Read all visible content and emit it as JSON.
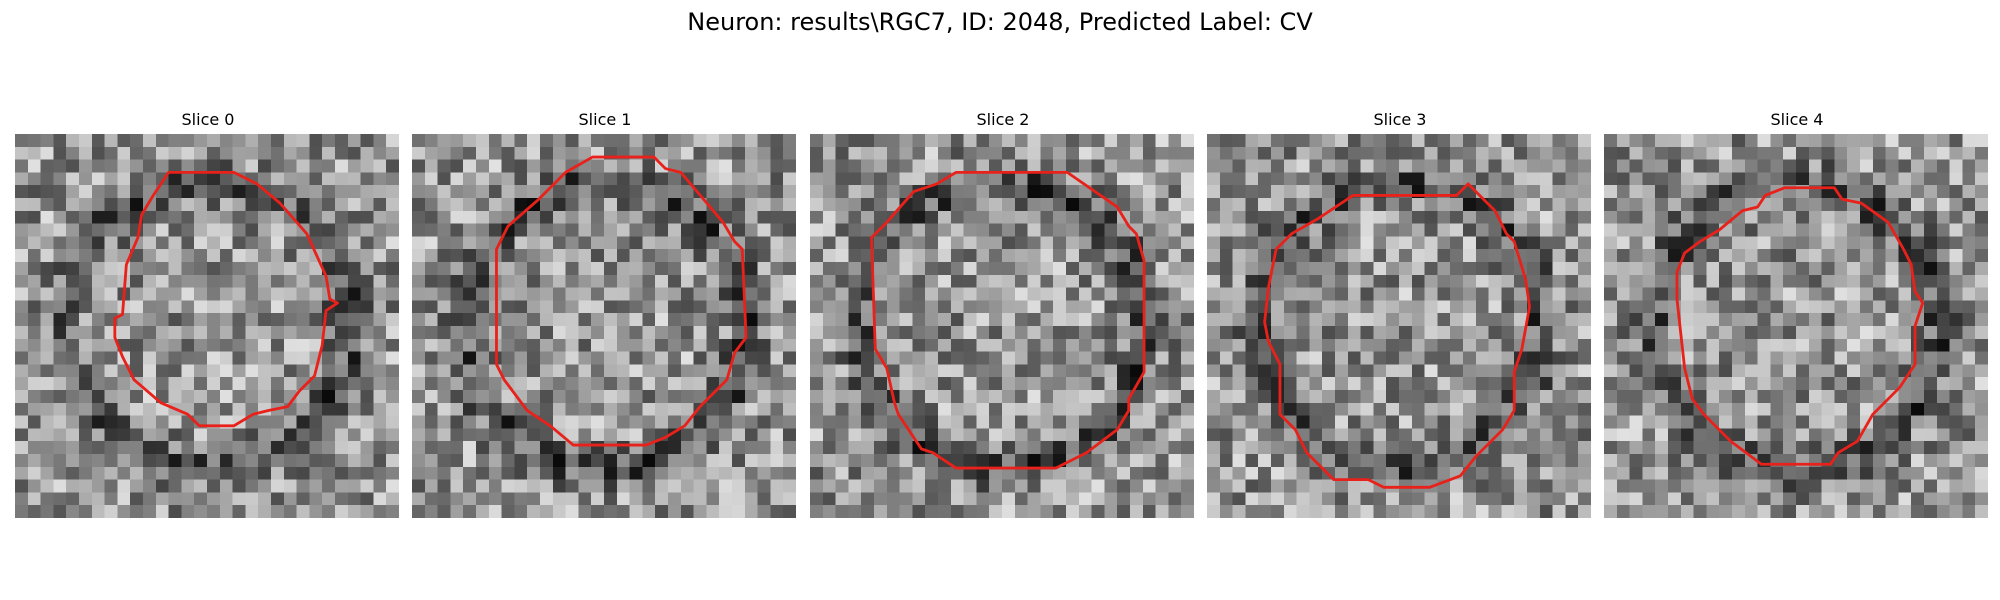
{
  "figure": {
    "title": "Neuron: results\\RGC7, ID: 2048, Predicted Label: CV"
  },
  "panels": [
    {
      "title": "Slice 0",
      "seed": 11,
      "contour": [
        [
          0.4,
          0.1
        ],
        [
          0.57,
          0.1
        ],
        [
          0.63,
          0.13
        ],
        [
          0.69,
          0.18
        ],
        [
          0.76,
          0.26
        ],
        [
          0.81,
          0.37
        ],
        [
          0.82,
          0.43
        ],
        [
          0.84,
          0.44
        ],
        [
          0.81,
          0.46
        ],
        [
          0.8,
          0.55
        ],
        [
          0.78,
          0.63
        ],
        [
          0.74,
          0.67
        ],
        [
          0.71,
          0.71
        ],
        [
          0.66,
          0.72
        ],
        [
          0.62,
          0.73
        ],
        [
          0.57,
          0.76
        ],
        [
          0.48,
          0.76
        ],
        [
          0.45,
          0.73
        ],
        [
          0.38,
          0.7
        ],
        [
          0.31,
          0.64
        ],
        [
          0.28,
          0.58
        ],
        [
          0.26,
          0.53
        ],
        [
          0.26,
          0.48
        ],
        [
          0.28,
          0.47
        ],
        [
          0.29,
          0.34
        ],
        [
          0.32,
          0.27
        ],
        [
          0.33,
          0.21
        ],
        [
          0.36,
          0.16
        ]
      ]
    },
    {
      "title": "Slice 1",
      "seed": 23,
      "contour": [
        [
          0.4,
          0.1
        ],
        [
          0.47,
          0.06
        ],
        [
          0.63,
          0.06
        ],
        [
          0.66,
          0.09
        ],
        [
          0.7,
          0.1
        ],
        [
          0.81,
          0.23
        ],
        [
          0.84,
          0.28
        ],
        [
          0.86,
          0.3
        ],
        [
          0.87,
          0.53
        ],
        [
          0.84,
          0.57
        ],
        [
          0.82,
          0.64
        ],
        [
          0.75,
          0.71
        ],
        [
          0.71,
          0.76
        ],
        [
          0.66,
          0.79
        ],
        [
          0.61,
          0.81
        ],
        [
          0.42,
          0.81
        ],
        [
          0.36,
          0.76
        ],
        [
          0.3,
          0.72
        ],
        [
          0.24,
          0.64
        ],
        [
          0.22,
          0.6
        ],
        [
          0.22,
          0.3
        ],
        [
          0.25,
          0.24
        ],
        [
          0.33,
          0.17
        ]
      ]
    },
    {
      "title": "Slice 2",
      "seed": 37,
      "contour": [
        [
          0.38,
          0.1
        ],
        [
          0.67,
          0.1
        ],
        [
          0.8,
          0.19
        ],
        [
          0.83,
          0.24
        ],
        [
          0.85,
          0.26
        ],
        [
          0.87,
          0.33
        ],
        [
          0.87,
          0.62
        ],
        [
          0.83,
          0.69
        ],
        [
          0.83,
          0.72
        ],
        [
          0.8,
          0.77
        ],
        [
          0.72,
          0.83
        ],
        [
          0.64,
          0.87
        ],
        [
          0.38,
          0.87
        ],
        [
          0.32,
          0.83
        ],
        [
          0.29,
          0.82
        ],
        [
          0.23,
          0.73
        ],
        [
          0.22,
          0.7
        ],
        [
          0.2,
          0.61
        ],
        [
          0.17,
          0.56
        ],
        [
          0.16,
          0.27
        ],
        [
          0.2,
          0.23
        ],
        [
          0.27,
          0.15
        ],
        [
          0.33,
          0.13
        ]
      ]
    },
    {
      "title": "Slice 3",
      "seed": 53,
      "contour": [
        [
          0.29,
          0.22
        ],
        [
          0.35,
          0.18
        ],
        [
          0.38,
          0.16
        ],
        [
          0.65,
          0.16
        ],
        [
          0.68,
          0.13
        ],
        [
          0.75,
          0.2
        ],
        [
          0.78,
          0.26
        ],
        [
          0.8,
          0.28
        ],
        [
          0.83,
          0.38
        ],
        [
          0.84,
          0.45
        ],
        [
          0.82,
          0.56
        ],
        [
          0.8,
          0.62
        ],
        [
          0.8,
          0.72
        ],
        [
          0.77,
          0.77
        ],
        [
          0.7,
          0.84
        ],
        [
          0.66,
          0.89
        ],
        [
          0.58,
          0.92
        ],
        [
          0.46,
          0.92
        ],
        [
          0.42,
          0.9
        ],
        [
          0.33,
          0.9
        ],
        [
          0.26,
          0.83
        ],
        [
          0.23,
          0.77
        ],
        [
          0.19,
          0.73
        ],
        [
          0.19,
          0.6
        ],
        [
          0.16,
          0.54
        ],
        [
          0.15,
          0.49
        ],
        [
          0.16,
          0.4
        ],
        [
          0.18,
          0.3
        ],
        [
          0.22,
          0.26
        ]
      ]
    },
    {
      "title": "Slice 4",
      "seed": 71,
      "contour": [
        [
          0.36,
          0.2
        ],
        [
          0.4,
          0.19
        ],
        [
          0.42,
          0.16
        ],
        [
          0.47,
          0.14
        ],
        [
          0.6,
          0.14
        ],
        [
          0.62,
          0.17
        ],
        [
          0.67,
          0.18
        ],
        [
          0.74,
          0.23
        ],
        [
          0.78,
          0.3
        ],
        [
          0.8,
          0.34
        ],
        [
          0.81,
          0.41
        ],
        [
          0.83,
          0.44
        ],
        [
          0.81,
          0.5
        ],
        [
          0.81,
          0.6
        ],
        [
          0.77,
          0.66
        ],
        [
          0.7,
          0.73
        ],
        [
          0.66,
          0.8
        ],
        [
          0.61,
          0.83
        ],
        [
          0.59,
          0.86
        ],
        [
          0.41,
          0.86
        ],
        [
          0.37,
          0.83
        ],
        [
          0.33,
          0.8
        ],
        [
          0.26,
          0.73
        ],
        [
          0.23,
          0.69
        ],
        [
          0.21,
          0.61
        ],
        [
          0.2,
          0.52
        ],
        [
          0.19,
          0.43
        ],
        [
          0.19,
          0.36
        ],
        [
          0.21,
          0.31
        ],
        [
          0.25,
          0.28
        ],
        [
          0.3,
          0.25
        ]
      ]
    }
  ],
  "colors": {
    "contour": "#e8211b"
  }
}
